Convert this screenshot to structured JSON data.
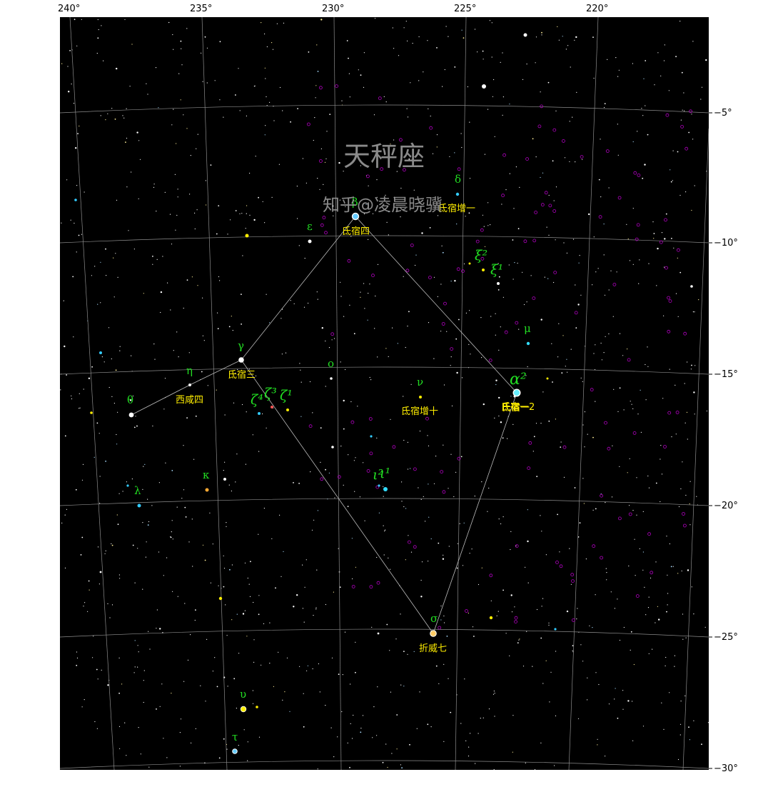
{
  "title": "天秤座",
  "watermark": "知乎@凌晨晓骥",
  "colors": {
    "sky": "#000000",
    "grid": "#8c8c8c",
    "lines": "#bcbcbc",
    "greek": "#22dd22",
    "chinese": "#ffee00",
    "deepsky": "#b000c0"
  },
  "axes": {
    "ra_ticks": [
      "240°",
      "235°",
      "230°",
      "225°",
      "220°"
    ],
    "dec_ticks": [
      "−5°",
      "−10°",
      "−15°",
      "−20°",
      "−25°",
      "−30°"
    ]
  },
  "stars": [
    {
      "id": "beta",
      "greek": "β",
      "chinese": "氐宿四",
      "color": "#66ccff",
      "size": 4.5
    },
    {
      "id": "alpha2",
      "greek": "α²",
      "chinese": "氐宿一",
      "color": "#66eeff",
      "size": 4.8
    },
    {
      "id": "alpha1",
      "chinese": "氐宿一2",
      "color": "#ffffff",
      "size": 1.5
    },
    {
      "id": "sigma",
      "greek": "σ",
      "chinese": "折威七",
      "color": "#ffcc66",
      "size": 4.5
    },
    {
      "id": "gamma",
      "greek": "γ",
      "chinese": "氐宿三",
      "color": "#ffffff",
      "size": 4
    },
    {
      "id": "theta",
      "greek": "θ",
      "color": "#ffffff",
      "size": 3.5
    },
    {
      "id": "eta",
      "greek": "η",
      "chinese": "西咸四",
      "color": "#ffffff",
      "size": 2
    },
    {
      "id": "upsilon",
      "greek": "υ",
      "color": "#ffee00",
      "size": 4
    },
    {
      "id": "tau",
      "greek": "τ",
      "color": "#66ccff",
      "size": 3.5
    },
    {
      "id": "delta",
      "greek": "δ",
      "chinese": "氐宿增一",
      "color": "#33ccff",
      "size": 2.2
    },
    {
      "id": "epsilon",
      "greek": "ε",
      "color": "#ffffff",
      "size": 2.5
    },
    {
      "id": "xi2",
      "greek": "ξ²",
      "color": "#ffee00",
      "size": 2
    },
    {
      "id": "xi1",
      "greek": "ξ¹",
      "color": "#ffffff",
      "size": 2
    },
    {
      "id": "mu",
      "greek": "μ",
      "color": "#33ddff",
      "size": 2.2
    },
    {
      "id": "omicron",
      "greek": "ο",
      "color": "#ffffff",
      "size": 1.8
    },
    {
      "id": "nu",
      "greek": "ν",
      "chinese": "氐宿增十",
      "color": "#ffee00",
      "size": 2
    },
    {
      "id": "zeta4",
      "greek": "ζ⁴",
      "color": "#33ccff",
      "size": 2
    },
    {
      "id": "zeta3",
      "greek": "ζ³",
      "color": "#ff5555",
      "size": 2
    },
    {
      "id": "zeta1",
      "greek": "ζ¹",
      "color": "#ffee00",
      "size": 2
    },
    {
      "id": "iota1",
      "greek": "ι¹",
      "color": "#33ddff",
      "size": 3
    },
    {
      "id": "iota2",
      "greek": "ι²",
      "color": "#33ccff",
      "size": 1.6
    },
    {
      "id": "kappa",
      "greek": "κ",
      "color": "#ffaa33",
      "size": 2.5
    },
    {
      "id": "lambda",
      "greek": "λ",
      "color": "#33ccff",
      "size": 2.5
    }
  ]
}
